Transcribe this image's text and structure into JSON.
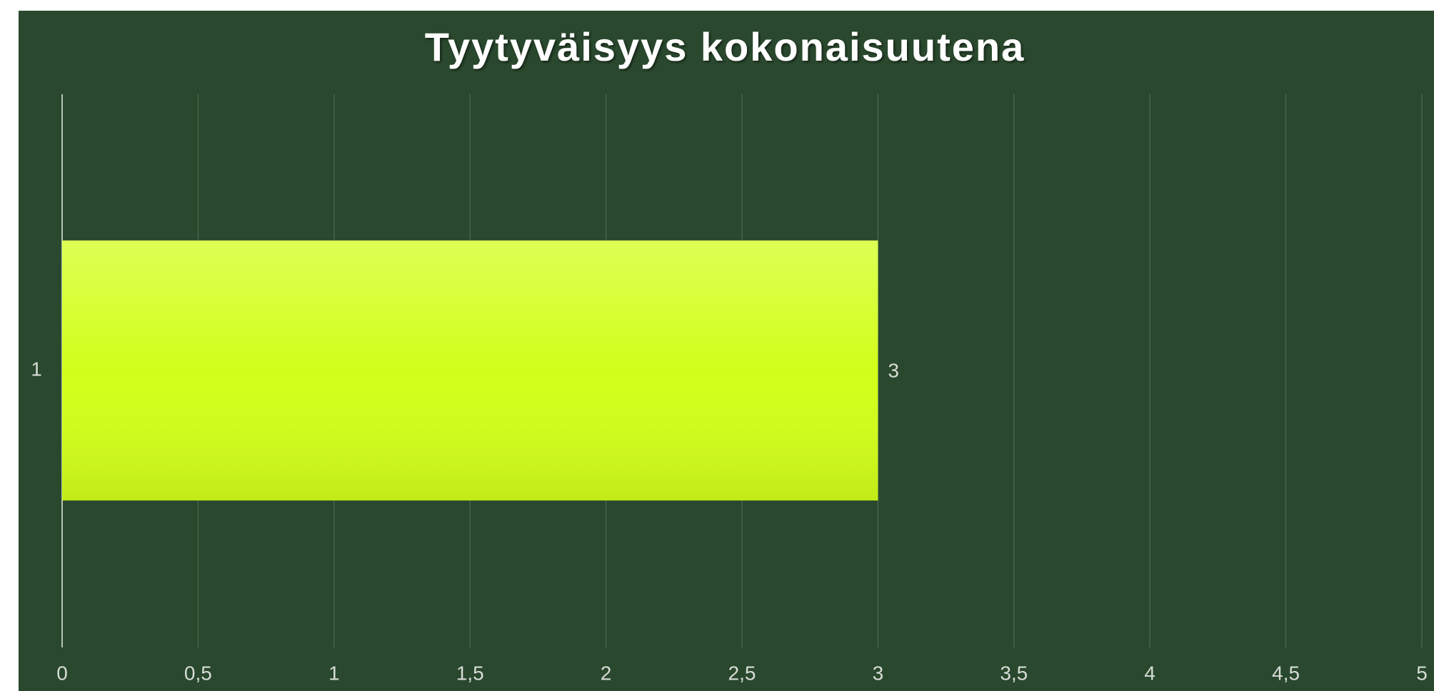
{
  "chart_data": {
    "type": "barh",
    "title": "Tyytyväisyys kokonaisuutena",
    "categories": [
      "1"
    ],
    "values": [
      3
    ],
    "color": "#d2ff1a",
    "xlim": [
      0,
      5
    ],
    "xticks": [
      0,
      {
        "value": 0.5,
        "label": "0,5"
      },
      1,
      {
        "value": 1.5,
        "label": "1,5"
      },
      2,
      {
        "value": 2.5,
        "label": "2,5"
      },
      3,
      {
        "value": 3.5,
        "label": "3,5"
      },
      4,
      {
        "value": 4.5,
        "label": "4,5"
      },
      5
    ],
    "grid": true
  }
}
